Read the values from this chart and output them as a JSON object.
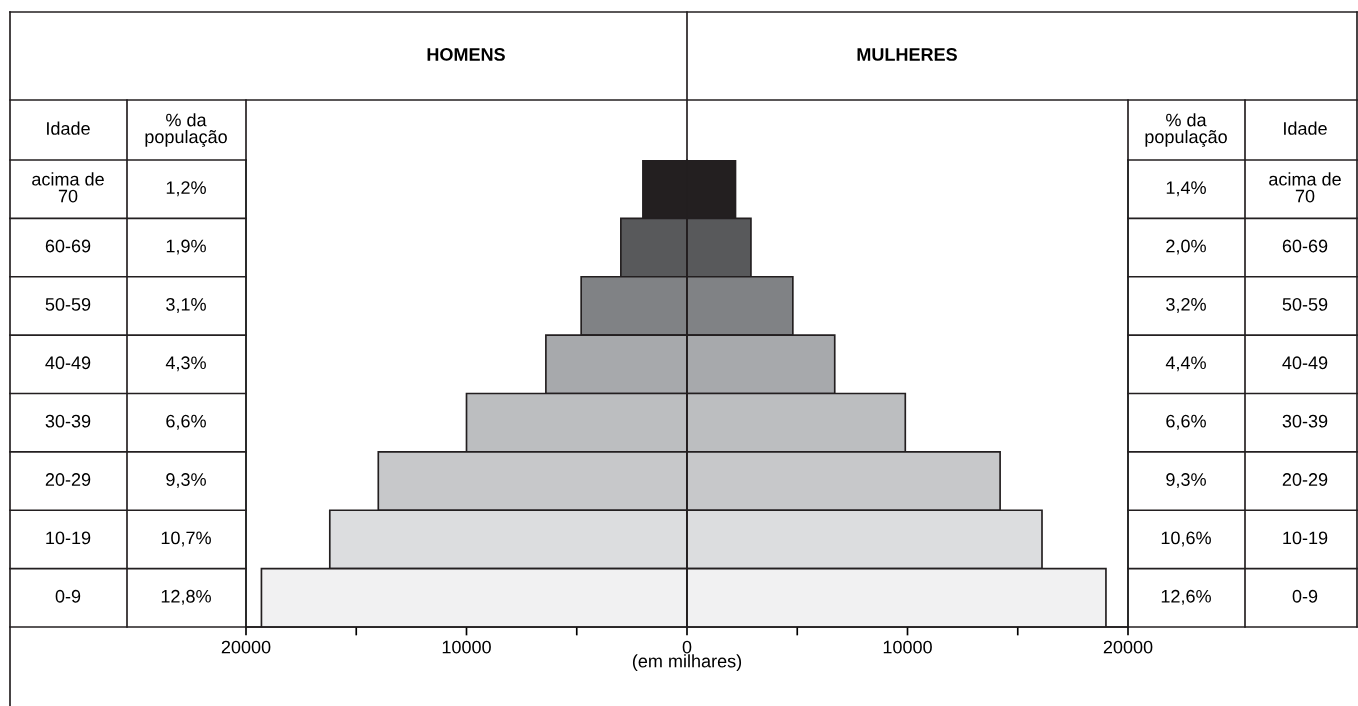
{
  "chart_data": {
    "type": "bar",
    "orientation": "horizontal",
    "stacked": true,
    "categories": [
      "acima de\n70",
      "60-69",
      "50-59",
      "40-49",
      "30-39",
      "20-29",
      "10-19",
      "0-9"
    ],
    "series": [
      {
        "values": [
          -2000,
          -3000,
          -4800,
          -6400,
          -10000,
          -14000,
          -16200,
          -19300
        ],
        "colors": [
          "#231f20",
          "#58595b",
          "#808285",
          "#a7a9ac",
          "#bcbec0",
          "#c7c8ca",
          "#dcdddf",
          "#f1f1f2"
        ]
      },
      {
        "values": [
          2200,
          2900,
          4800,
          6700,
          9900,
          14200,
          16100,
          19000
        ],
        "colors": [
          "#231f20",
          "#58595b",
          "#808285",
          "#a7a9ac",
          "#bcbec0",
          "#c7c8ca",
          "#dcdddf",
          "#f1f1f2"
        ]
      }
    ],
    "annotations": [
      "HOMENS",
      "MULHERES",
      "Idade",
      "% da\npopulação",
      "1,2%",
      "1,4%",
      "1,9%",
      "2,0%",
      "3,1%",
      "3,2%",
      "4,3%",
      "4,4%",
      "6,6%",
      "6,6%",
      "9,3%",
      "9,3%",
      "10,7%",
      "10,6%",
      "12,8%",
      "12,6%"
    ],
    "ref_lines": [
      {
        "axis": "x",
        "value": 0
      }
    ],
    "xlabel": "(em milhares)",
    "xlim": [
      -20000,
      20000
    ],
    "xticks": [
      {
        "value": -20000,
        "label": "20000"
      },
      {
        "value": -15000,
        "label": null
      },
      {
        "value": -10000,
        "label": "10000"
      },
      {
        "value": -5000,
        "label": null
      },
      0,
      {
        "value": 5000,
        "label": null
      },
      10000,
      {
        "value": 15000,
        "label": null
      },
      20000
    ],
    "grid": false,
    "legend": false
  }
}
